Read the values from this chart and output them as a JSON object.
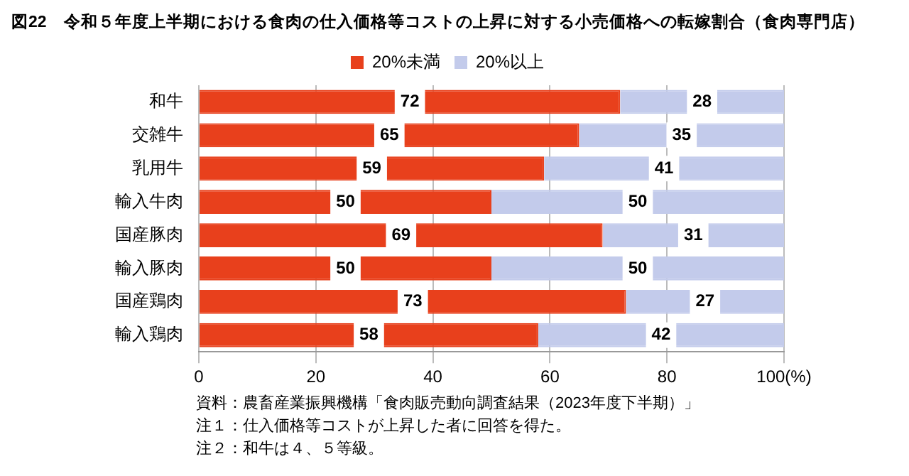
{
  "chart_data": {
    "type": "bar",
    "orientation": "horizontal",
    "stacked": true,
    "title": "図22　令和５年度上半期における食肉の仕入価格等コストの上昇に対する小売価格への転嫁割合（食肉専門店）",
    "categories": [
      "和牛",
      "交雑牛",
      "乳用牛",
      "輸入牛肉",
      "国産豚肉",
      "輸入豚肉",
      "国産鶏肉",
      "輸入鶏肉"
    ],
    "series": [
      {
        "name": "20%未満",
        "color": "#e8401c",
        "values": [
          72,
          65,
          59,
          50,
          69,
          50,
          73,
          58
        ]
      },
      {
        "name": "20%以上",
        "color": "#c3cbeb",
        "values": [
          28,
          35,
          41,
          50,
          31,
          50,
          27,
          42
        ]
      }
    ],
    "xlim": [
      0,
      100
    ],
    "xticks": [
      0,
      20,
      40,
      60,
      80,
      {
        "value": 100,
        "label": "100(%)"
      }
    ],
    "grid": "x",
    "legend": "top",
    "data_labels": true,
    "annotations": [
      "資料：農畜産業振興機構「食肉販売動向調査結果（2023年度下半期）」",
      "注１：仕入価格等コストが上昇した者に回答を得た。",
      "注２：和牛は４、５等級。"
    ]
  }
}
